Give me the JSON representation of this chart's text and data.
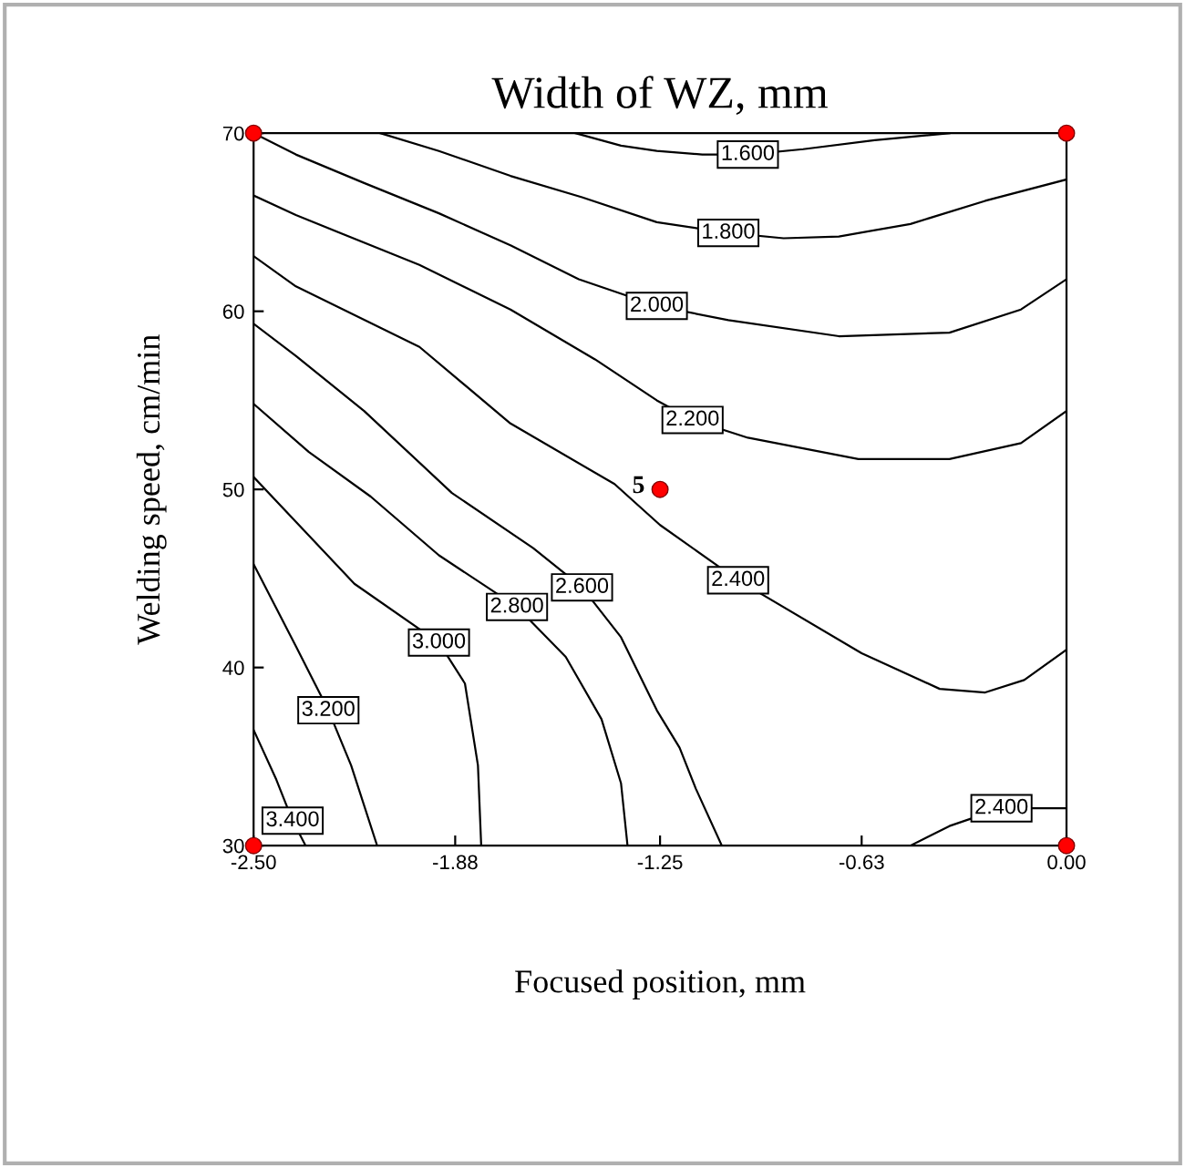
{
  "chart_data": {
    "type": "line",
    "title": "Width of WZ, mm",
    "xlabel": "Focused position, mm",
    "ylabel": "Welding speed, cm/min",
    "xlim": [
      -2.5,
      0
    ],
    "ylim": [
      30,
      70
    ],
    "xticks": [
      {
        "value": -2.5,
        "label": "-2.50"
      },
      {
        "value": -1.88,
        "label": "-1.88"
      },
      {
        "value": -1.25,
        "label": "-1.25"
      },
      {
        "value": -0.63,
        "label": "-0.63"
      },
      {
        "value": 0,
        "label": "0.00"
      }
    ],
    "yticks": [
      30,
      40,
      50,
      60,
      70
    ],
    "grid": false,
    "legend": false,
    "marker": "none",
    "line_style": "solid",
    "series": [
      {
        "name": "1.600",
        "color": "#000000",
        "x": [
          -1.51,
          -1.37,
          -1.26,
          -1.12,
          -0.98,
          -0.81,
          -0.59,
          -0.36
        ],
        "values": [
          70,
          69.3,
          69.0,
          68.8,
          68.8,
          69.1,
          69.6,
          70
        ]
      },
      {
        "name": "1.800",
        "color": "#000000",
        "x": [
          -2.11,
          -1.93,
          -1.71,
          -1.49,
          -1.26,
          -1.04,
          -0.87,
          -0.7,
          -0.48,
          -0.25,
          0
        ],
        "values": [
          70,
          69.0,
          67.6,
          66.4,
          65.0,
          64.4,
          64.1,
          64.2,
          64.9,
          66.2,
          67.4
        ]
      },
      {
        "name": "2.000",
        "color": "#000000",
        "x": [
          -2.5,
          -2.37,
          -2.16,
          -1.93,
          -1.71,
          -1.5,
          -1.26,
          -1.04,
          -0.7,
          -0.36,
          -0.14,
          0
        ],
        "values": [
          70,
          68.8,
          67.2,
          65.5,
          63.7,
          61.8,
          60.3,
          59.5,
          58.6,
          58.8,
          60.1,
          61.8
        ]
      },
      {
        "name": "2.200",
        "color": "#000000",
        "x": [
          -2.5,
          -2.37,
          -1.99,
          -1.71,
          -1.45,
          -1.26,
          -1.15,
          -0.98,
          -0.64,
          -0.36,
          -0.14,
          0
        ],
        "values": [
          66.5,
          65.4,
          62.6,
          60.1,
          57.3,
          55.0,
          53.9,
          52.9,
          51.7,
          51.7,
          52.6,
          54.4
        ]
      },
      {
        "name": "2.400",
        "color": "#000000",
        "x": [
          -2.5,
          -2.37,
          -1.99,
          -1.71,
          -1.39,
          -1.25,
          -1.01,
          -0.63,
          -0.39,
          -0.25,
          -0.13,
          0
        ],
        "values": [
          63.1,
          61.4,
          58.0,
          53.7,
          50.3,
          48.0,
          44.9,
          40.8,
          38.8,
          38.6,
          39.3,
          41.0
        ]
      },
      {
        "name": "2.600",
        "color": "#000000",
        "x": [
          -2.5,
          -2.37,
          -2.16,
          -1.89,
          -1.64,
          -1.49,
          -1.37,
          -1.26,
          -1.19,
          -1.14,
          -1.06
        ],
        "values": [
          59.3,
          57.5,
          54.4,
          49.8,
          46.7,
          44.5,
          41.7,
          37.6,
          35.5,
          33.2,
          30
        ]
      },
      {
        "name": "2.800",
        "color": "#000000",
        "x": [
          -2.5,
          -2.33,
          -2.14,
          -1.93,
          -1.69,
          -1.54,
          -1.43,
          -1.37,
          -1.35
        ],
        "values": [
          54.8,
          52.1,
          49.6,
          46.3,
          43.4,
          40.6,
          37.1,
          33.5,
          30
        ]
      },
      {
        "name": "3.000",
        "color": "#000000",
        "x": [
          -2.5,
          -2.35,
          -2.19,
          -1.93,
          -1.85,
          -1.81,
          -1.8
        ],
        "values": [
          50.7,
          47.8,
          44.7,
          41.4,
          39.1,
          34.5,
          30
        ]
      },
      {
        "name": "3.200",
        "color": "#000000",
        "x": [
          -2.5,
          -2.37,
          -2.27,
          -2.2,
          -2.12
        ],
        "values": [
          45.8,
          41.2,
          37.6,
          34.5,
          30
        ]
      },
      {
        "name": "3.400",
        "color": "#000000",
        "x": [
          -2.5,
          -2.43,
          -2.38,
          -2.34
        ],
        "values": [
          36.5,
          33.7,
          31.4,
          30
        ]
      },
      {
        "name": "2.400",
        "color": "#000000",
        "x": [
          -0.48,
          -0.36,
          -0.2,
          0
        ],
        "values": [
          30,
          31.1,
          32.1,
          32.1
        ]
      },
      {
        "type": "scatter",
        "color": "#ff0000",
        "marker": "circle",
        "x": [
          -2.5,
          0,
          -1.25,
          -2.5,
          0
        ],
        "values": [
          70,
          70,
          50,
          30,
          30
        ]
      }
    ],
    "annotations": [
      {
        "text": "5",
        "x": -1.25,
        "y": 50
      }
    ]
  }
}
